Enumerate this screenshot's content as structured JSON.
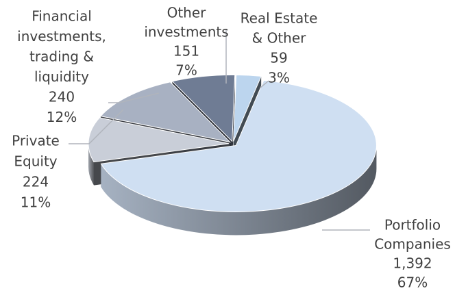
{
  "chart_data": {
    "type": "pie",
    "categories": [
      [
        "Other",
        "investments"
      ],
      [
        "Real Estate",
        "& Other"
      ],
      [
        "Portfolio",
        "Companies"
      ],
      [
        "Private",
        "Equity"
      ],
      [
        "Financial",
        "investments,",
        "trading &",
        "liquidity"
      ]
    ],
    "values": [
      151,
      59,
      1392,
      224,
      240
    ],
    "value_labels": [
      "151",
      "59",
      "1,392",
      "224",
      "240"
    ],
    "shares": {
      "values": [
        7,
        3,
        67,
        11,
        12
      ],
      "value_labels": [
        "7%",
        "3%",
        "67%",
        "11%",
        "12%"
      ]
    },
    "colors": [
      "#6f7c94",
      "#bcd5ee",
      "#cfdff2",
      "#c9ced8",
      "#a8b1c2"
    ]
  }
}
